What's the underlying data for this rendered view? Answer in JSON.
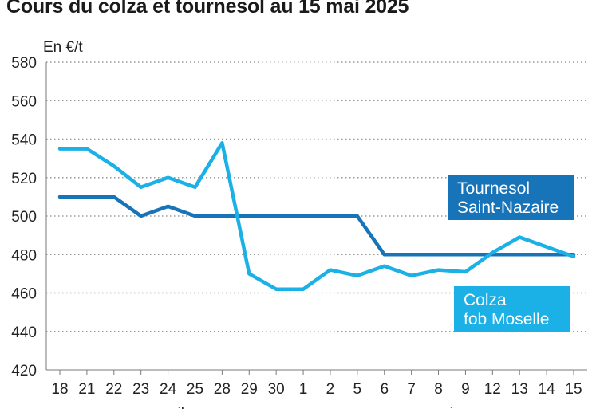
{
  "title": "Cours du colza et tournesol au 15 mai 2025",
  "chart_data": {
    "type": "line",
    "ylabel": "En €/t",
    "ylim": [
      420,
      580
    ],
    "yticks": [
      420,
      440,
      460,
      480,
      500,
      520,
      540,
      560,
      580
    ],
    "grid": true,
    "categories": [
      "18",
      "21",
      "22",
      "23",
      "24",
      "25",
      "28",
      "29",
      "30",
      "1",
      "2",
      "5",
      "6",
      "7",
      "8",
      "9",
      "12",
      "13",
      "14",
      "15"
    ],
    "months": [
      {
        "label": "avril",
        "start_index": 0,
        "end_index": 8
      },
      {
        "label": "mai",
        "start_index": 9,
        "end_index": 19
      }
    ],
    "series": [
      {
        "name_lines": [
          "Tournesol",
          "Saint-Nazaire"
        ],
        "color": "#1874b8",
        "values": [
          510,
          510,
          510,
          500,
          505,
          500,
          500,
          500,
          500,
          500,
          500,
          500,
          480,
          480,
          480,
          480,
          480,
          480,
          480,
          480
        ]
      },
      {
        "name_lines": [
          "Colza",
          "fob Moselle"
        ],
        "color": "#1bb0e6",
        "values": [
          535,
          535,
          526,
          515,
          520,
          515,
          538,
          470,
          462,
          462,
          472,
          469,
          474,
          469,
          472,
          471,
          481,
          489,
          484,
          479
        ]
      }
    ]
  }
}
